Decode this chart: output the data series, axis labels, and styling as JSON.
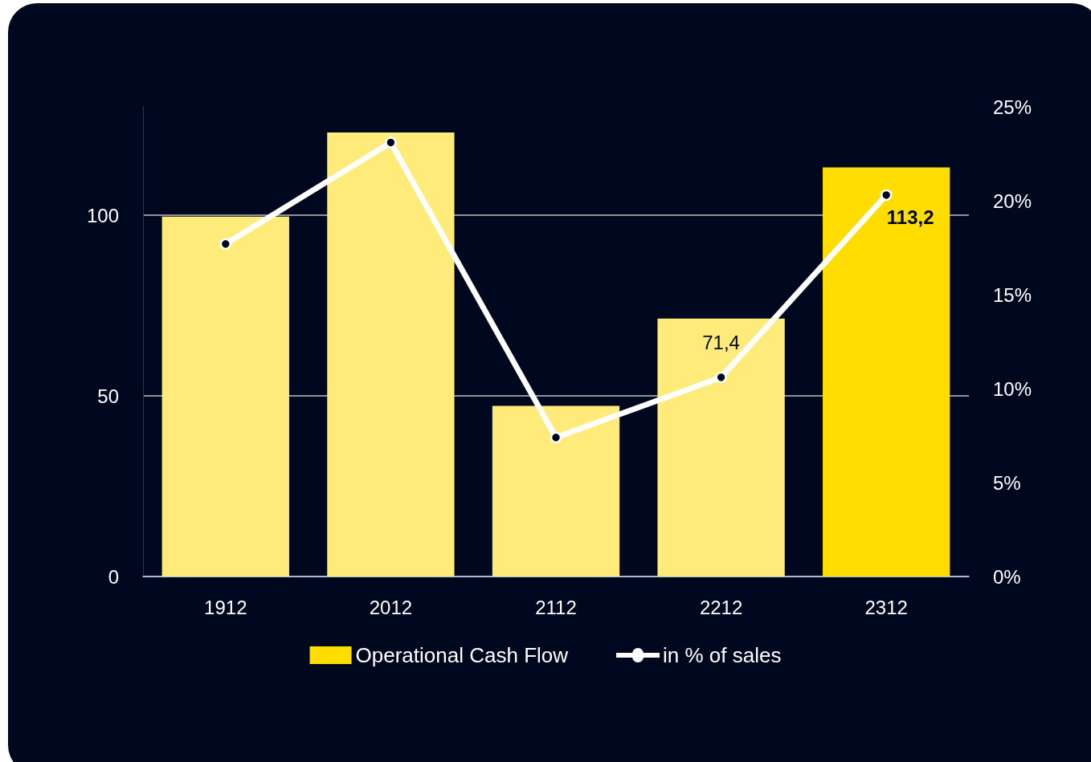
{
  "chart_data": {
    "type": "bar",
    "categories": [
      "1912",
      "2012",
      "2112",
      "2212",
      "2312"
    ],
    "series": [
      {
        "name": "Operational Cash Flow",
        "color": "#ffdd00",
        "colors": [
          "#ffeb7a",
          "#ffeb7a",
          "#ffeb7a",
          "#ffeb7a",
          "#ffdd00"
        ],
        "values": [
          99.6,
          122.9,
          47.2,
          71.4,
          113.2
        ],
        "value_labels": [
          null,
          null,
          null,
          "71,4",
          "113,2"
        ]
      },
      {
        "name": "in % of sales",
        "type": "line",
        "axis": "y2",
        "color": "#ffffff",
        "values": [
          17.7,
          23.1,
          7.4,
          10.6,
          20.3
        ]
      }
    ],
    "ylim": [
      0,
      130
    ],
    "yticks": [
      0,
      50,
      100
    ],
    "y2lim": [
      0,
      25
    ],
    "y2ticks": [
      {
        "value": 0,
        "label": "0%"
      },
      {
        "value": 5,
        "label": "5%"
      },
      {
        "value": 10,
        "label": "10%"
      },
      {
        "value": 15,
        "label": "15%"
      },
      {
        "value": 20,
        "label": "20%"
      },
      {
        "value": 25,
        "label": "25%"
      }
    ],
    "grid": "y",
    "legend": "bottom",
    "marker": "circle",
    "line_style": "solid"
  }
}
